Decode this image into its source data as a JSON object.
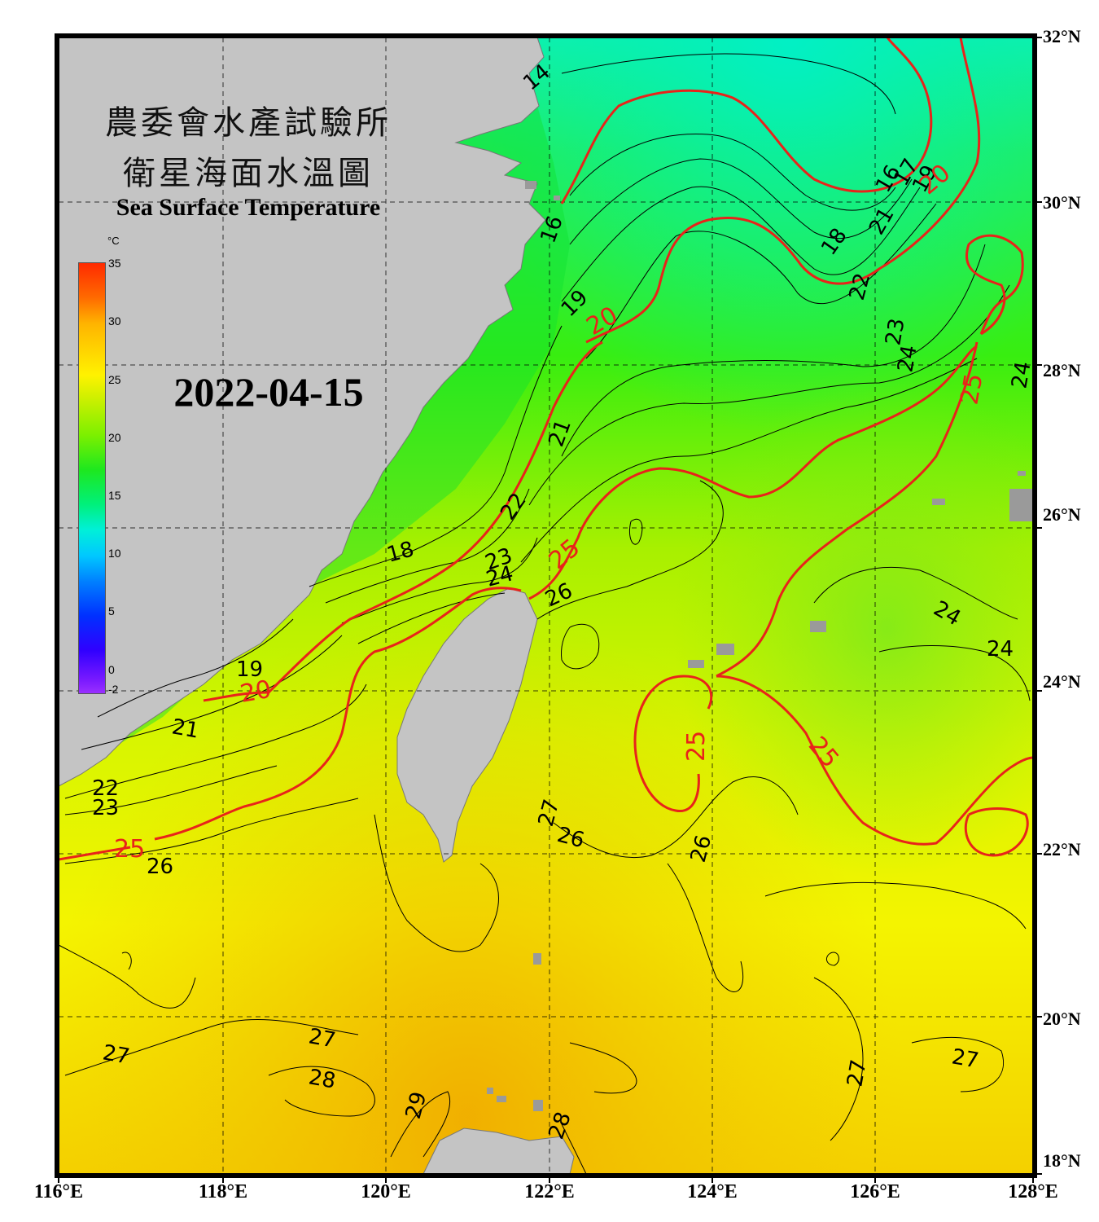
{
  "title": {
    "zh_line1": "農委會水產試驗所",
    "zh_line2": "衛星海面水溫圖",
    "en": "Sea Surface Temperature"
  },
  "date": "2022-04-15",
  "colorbar": {
    "unit": "°C",
    "ticks": [
      "35",
      "30",
      "25",
      "20",
      "15",
      "10",
      "5",
      "0",
      "-2"
    ]
  },
  "longitude_labels": [
    "116°E",
    "118°E",
    "120°E",
    "122°E",
    "124°E",
    "126°E",
    "128°E"
  ],
  "latitude_labels": [
    "32°N",
    "30°N",
    "28°N",
    "26°N",
    "24°N",
    "22°N",
    "20°N",
    "18°N"
  ],
  "contour_labels": {
    "black": [
      "14",
      "16",
      "16",
      "17",
      "18",
      "18",
      "19",
      "19",
      "19",
      "21",
      "21",
      "21",
      "22",
      "22",
      "22",
      "23",
      "23",
      "23",
      "24",
      "24",
      "24",
      "24",
      "24",
      "26",
      "26",
      "26",
      "26",
      "27",
      "27",
      "27",
      "27",
      "27",
      "28",
      "28",
      "29"
    ],
    "red": [
      "20",
      "20",
      "20",
      "25",
      "25",
      "25",
      "25",
      "25",
      "20"
    ]
  },
  "colors": {
    "frame": "#000000",
    "land": "#c4c4c4",
    "contour_major": "#e8231a",
    "contour_minor": "#000000"
  }
}
